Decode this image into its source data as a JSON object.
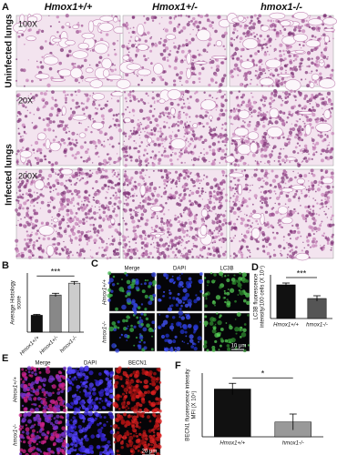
{
  "panel_a": {
    "label": "A",
    "columns": [
      "Hmox1+/+",
      "Hmox1+/-",
      "hmox1-/-"
    ],
    "rows": [
      "Uninfected lungs",
      "Infected lungs"
    ],
    "magnifications": [
      "100X",
      "20X",
      "200X"
    ]
  },
  "panel_c": {
    "label": "C",
    "columns": [
      "Merge",
      "DAPI",
      "LC3B"
    ],
    "rows": [
      "Hmox1+/+",
      "hmox1-/-"
    ],
    "scale_bar": "10 μm"
  },
  "panel_e": {
    "label": "E",
    "columns": [
      "Merge",
      "DAPI",
      "BECN1"
    ],
    "rows": [
      "Hmox1+/+",
      "hmox1-/-"
    ],
    "scale_bar": "20 μm"
  },
  "chart_data": [
    {
      "type": "bar",
      "label": "B",
      "y_label": [
        "Average Histology",
        "score"
      ],
      "categories": [
        "Hmox1+/+",
        "Hmox1+/-",
        "hmox1-/-"
      ],
      "values": [
        1.0,
        2.2,
        2.9
      ],
      "errors": [
        0.05,
        0.1,
        0.1
      ],
      "colors": [
        "#111111",
        "#888888",
        "#cccccc"
      ],
      "ylim": [
        0,
        3.5
      ],
      "annotation": "***"
    },
    {
      "type": "bar",
      "label": "D",
      "y_label": [
        "LC3B fluorescence",
        "intensity/100 cells (X 10⁴)"
      ],
      "categories": [
        "Hmox1+/+",
        "hmox1-/-"
      ],
      "values": [
        1.85,
        1.1
      ],
      "errors": [
        0.1,
        0.15
      ],
      "colors": [
        "#111111",
        "#555555"
      ],
      "ylim": [
        0,
        2.4
      ],
      "annotation": "***"
    },
    {
      "type": "bar",
      "label": "F",
      "y_label": [
        "BECN1 fluorescence intensity",
        "MFI (X 10⁴)"
      ],
      "categories": [
        "Hmox1+/+",
        "hmox1-/-"
      ],
      "values": [
        21,
        6.5
      ],
      "errors": [
        2.5,
        3.5
      ],
      "colors": [
        "#111111",
        "#999999"
      ],
      "ylim": [
        0,
        28
      ],
      "annotation": "*"
    }
  ]
}
